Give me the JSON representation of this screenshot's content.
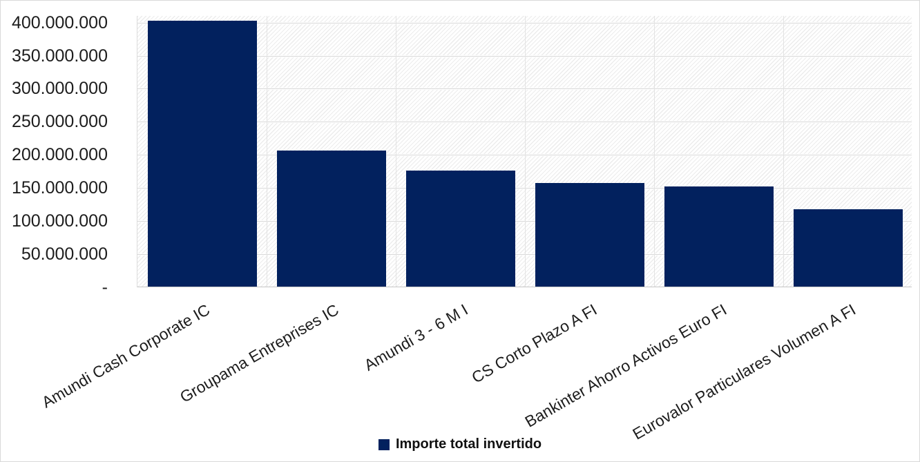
{
  "chart_data": {
    "type": "bar",
    "title": "",
    "xlabel": "",
    "ylabel": "",
    "categories": [
      "Amundi Cash Corporate IC",
      "Groupama Entreprises IC",
      "Amundi 3 - 6 M I",
      "CS Corto Plazo A FI",
      "Bankinter Ahorro Activos Euro FI",
      "Eurovalor Particulares Volumen A FI"
    ],
    "values": [
      402000000,
      205000000,
      175000000,
      156000000,
      151000000,
      117000000
    ],
    "series": [
      {
        "name": "Importe total invertido",
        "values": [
          402000000,
          205000000,
          175000000,
          156000000,
          151000000,
          117000000
        ]
      }
    ],
    "ylim": [
      0,
      410000000
    ],
    "ytick_interval": 50000000,
    "ytick_labels": [
      "-",
      "50.000.000",
      "100.000.000",
      "150.000.000",
      "200.000.000",
      "250.000.000",
      "300.000.000",
      "350.000.000",
      "400.000.000"
    ],
    "grid": true,
    "category_label_rotation_deg": -30,
    "legend": {
      "position": "bottom",
      "label": "Importe total invertido"
    },
    "colors": {
      "bar": "#02215e",
      "gridline": "#d8d8d8",
      "axis_line": "#c6c6c6",
      "text": "#1d1d1d",
      "chart_border": "#d9d9d9"
    }
  }
}
